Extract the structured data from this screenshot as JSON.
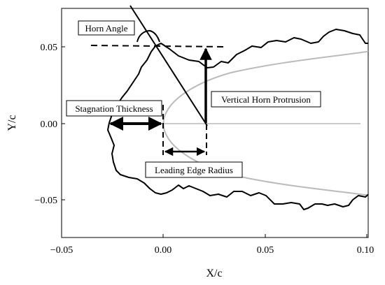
{
  "axes": {
    "xlabel": "X/c",
    "ylabel": "Y/c",
    "xlim": [
      -0.05,
      0.1
    ],
    "ylim": [
      -0.075,
      0.075
    ],
    "x_ticks": [
      {
        "value": -0.05,
        "label": "−0.05"
      },
      {
        "value": 0.0,
        "label": "0.00"
      },
      {
        "value": 0.05,
        "label": "0.05"
      },
      {
        "value": 0.1,
        "label": "0.10"
      }
    ],
    "y_ticks": [
      {
        "value": 0.05,
        "label": "0.05"
      },
      {
        "value": 0.0,
        "label": "0.00"
      },
      {
        "value": -0.05,
        "label": "−0.05"
      }
    ]
  },
  "annotations": {
    "horn_angle": "Horn Angle",
    "vertical_horn_protrusion": "Vertical Horn Protrusion",
    "stagnation_thickness": "Stagnation Thickness",
    "leading_edge_radius": "Leading Edge Radius"
  },
  "colors": {
    "ice_outline": "#000000",
    "airfoil": "#bbbbbb",
    "chord_line": "#bbbbbb",
    "annotation": "#000000"
  }
}
